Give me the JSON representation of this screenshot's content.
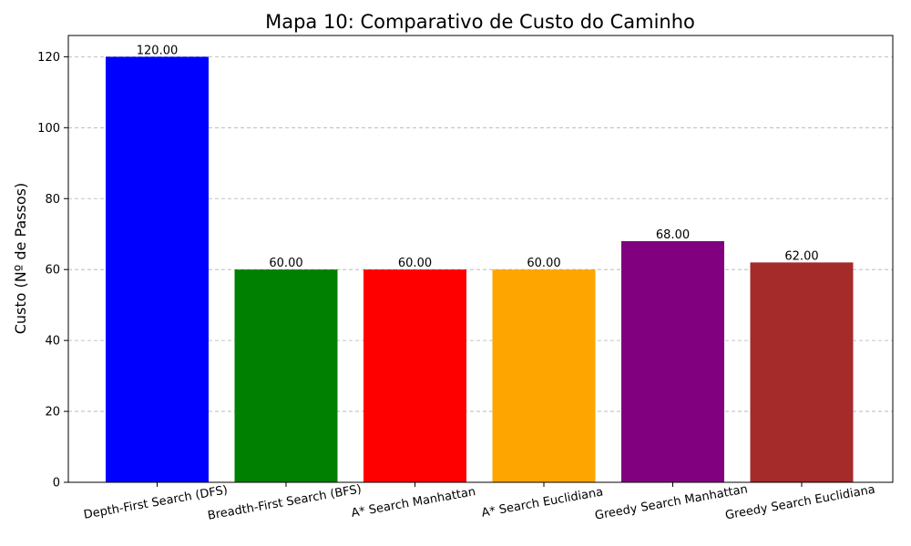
{
  "chart_data": {
    "type": "bar",
    "title": "Mapa 10: Comparativo de Custo do Caminho",
    "xlabel": "",
    "ylabel": "Custo (Nº de Passos)",
    "ylim": [
      0,
      126
    ],
    "yticks": [
      0,
      20,
      40,
      60,
      80,
      100,
      120
    ],
    "grid": "y-dashed",
    "categories": [
      "Depth-First Search (DFS)",
      "Breadth-First Search (BFS)",
      "A* Search Manhattan",
      "A* Search Euclidiana",
      "Greedy Search Manhattan",
      "Greedy Search Euclidiana"
    ],
    "values": [
      120,
      60,
      60,
      60,
      68,
      62
    ],
    "value_labels": [
      "120.00",
      "60.00",
      "60.00",
      "60.00",
      "68.00",
      "62.00"
    ],
    "colors": [
      "#0000ff",
      "#008000",
      "#ff0000",
      "#ffa500",
      "#800080",
      "#a52a2a"
    ]
  }
}
